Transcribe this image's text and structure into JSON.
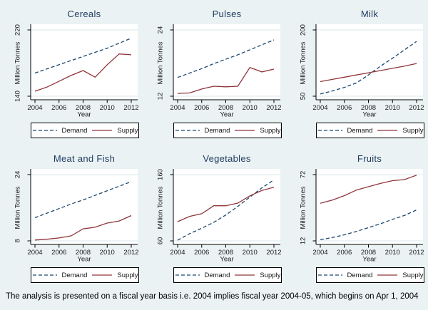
{
  "footnote": "The analysis is presented on a fiscal year basis i.e. 2004 implies fiscal year 2004-05, which begins on Apr 1, 2004",
  "colors": {
    "background": "#eaf2f3",
    "plot_background": "#ffffff",
    "gridline": "#d9e7e9",
    "axis": "#000000",
    "demand": "#1a476f",
    "supply": "#90353b",
    "title_text": "#1e3a5f",
    "tick_text": "#1a1a1a"
  },
  "chart_data": [
    {
      "type": "line",
      "title": "Cereals",
      "xlabel": "Year",
      "ylabel": "Million Tonnes",
      "x": [
        2004,
        2005,
        2006,
        2007,
        2008,
        2009,
        2010,
        2011,
        2012
      ],
      "xticks": [
        2004,
        2006,
        2008,
        2010,
        2012
      ],
      "ylim": [
        140,
        220
      ],
      "yticks": [
        140,
        220
      ],
      "grid": "horizontal at yticks",
      "legend_position": "bottom",
      "series": [
        {
          "name": "Demand",
          "style": "dashed",
          "values": [
            168,
            173,
            178,
            183,
            188,
            193,
            198,
            204,
            210
          ]
        },
        {
          "name": "Supply",
          "style": "solid",
          "values": [
            146,
            151,
            158,
            165,
            171,
            163,
            178,
            191,
            190
          ]
        }
      ]
    },
    {
      "type": "line",
      "title": "Pulses",
      "xlabel": "Year",
      "ylabel": "Million Tonnes",
      "x": [
        2004,
        2005,
        2006,
        2007,
        2008,
        2009,
        2010,
        2011,
        2012
      ],
      "xticks": [
        2004,
        2006,
        2008,
        2010,
        2012
      ],
      "ylim": [
        12,
        24
      ],
      "yticks": [
        12,
        24
      ],
      "grid": "horizontal at yticks",
      "legend_position": "bottom",
      "series": [
        {
          "name": "Demand",
          "style": "dashed",
          "values": [
            15.4,
            16.2,
            17.0,
            17.9,
            18.7,
            19.5,
            20.4,
            21.3,
            22.2
          ]
        },
        {
          "name": "Supply",
          "style": "solid",
          "values": [
            12.5,
            12.6,
            13.3,
            13.8,
            13.7,
            13.8,
            17.2,
            16.4,
            16.9
          ]
        }
      ]
    },
    {
      "type": "line",
      "title": "Milk",
      "xlabel": "Year",
      "ylabel": "Million Tonnes",
      "x": [
        2004,
        2005,
        2006,
        2007,
        2008,
        2009,
        2010,
        2011,
        2012
      ],
      "xticks": [
        2004,
        2006,
        2008,
        2010,
        2012
      ],
      "ylim": [
        50,
        200
      ],
      "yticks": [
        50,
        200
      ],
      "grid": "horizontal at yticks",
      "legend_position": "bottom",
      "series": [
        {
          "name": "Demand",
          "style": "dashed",
          "values": [
            55,
            62,
            70,
            80,
            98,
            118,
            136,
            155,
            174
          ]
        },
        {
          "name": "Supply",
          "style": "solid",
          "values": [
            83,
            88,
            93,
            98,
            103,
            108,
            113,
            118,
            124
          ]
        }
      ]
    },
    {
      "type": "line",
      "title": "Meat and Fish",
      "xlabel": "Year",
      "ylabel": "Million Tonnes",
      "x": [
        2004,
        2005,
        2006,
        2007,
        2008,
        2009,
        2010,
        2011,
        2012
      ],
      "xticks": [
        2004,
        2006,
        2008,
        2010,
        2012
      ],
      "ylim": [
        8,
        24
      ],
      "yticks": [
        8,
        24
      ],
      "grid": "horizontal at yticks",
      "legend_position": "bottom",
      "series": [
        {
          "name": "Demand",
          "style": "dashed",
          "values": [
            13.6,
            14.7,
            15.8,
            16.9,
            17.9,
            19.0,
            20.1,
            21.2,
            22.3
          ]
        },
        {
          "name": "Supply",
          "style": "solid",
          "values": [
            8.2,
            8.4,
            8.7,
            9.2,
            10.9,
            11.3,
            12.3,
            12.8,
            14.1
          ]
        }
      ]
    },
    {
      "type": "line",
      "title": "Vegetables",
      "xlabel": "Year",
      "ylabel": "Million Tonnes",
      "x": [
        2004,
        2005,
        2006,
        2007,
        2008,
        2009,
        2010,
        2011,
        2012
      ],
      "xticks": [
        2004,
        2006,
        2008,
        2010,
        2012
      ],
      "ylim": [
        60,
        160
      ],
      "yticks": [
        60,
        160
      ],
      "grid": "horizontal at yticks",
      "legend_position": "bottom",
      "series": [
        {
          "name": "Demand",
          "style": "dashed",
          "values": [
            61,
            71,
            79,
            88,
            99,
            112,
            126,
            140,
            152
          ]
        },
        {
          "name": "Supply",
          "style": "solid",
          "values": [
            89,
            97,
            101,
            113,
            113,
            117,
            128,
            136,
            141
          ]
        }
      ]
    },
    {
      "type": "line",
      "title": "Fruits",
      "xlabel": "Year",
      "ylabel": "Million Tonnes",
      "x": [
        2004,
        2005,
        2006,
        2007,
        2008,
        2009,
        2010,
        2011,
        2012
      ],
      "xticks": [
        2004,
        2006,
        2008,
        2010,
        2012
      ],
      "ylim": [
        12,
        72
      ],
      "yticks": [
        12,
        72
      ],
      "grid": "horizontal at yticks",
      "legend_position": "bottom",
      "series": [
        {
          "name": "Demand",
          "style": "dashed",
          "values": [
            13,
            15,
            17.5,
            20.5,
            24,
            27.5,
            31.5,
            35,
            40
          ]
        },
        {
          "name": "Supply",
          "style": "solid",
          "values": [
            46,
            49,
            53,
            58,
            61,
            64,
            66.5,
            67.5,
            71.5
          ]
        }
      ]
    }
  ]
}
